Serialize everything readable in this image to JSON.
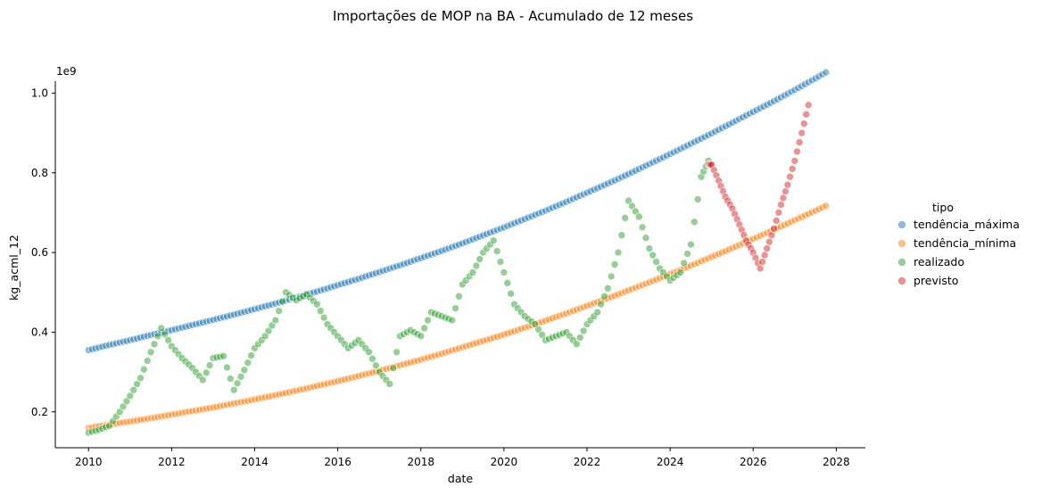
{
  "chart_data": {
    "type": "scatter",
    "title": "Importações de MOP na BA - Acumulado de 12 meses",
    "xlabel": "date",
    "ylabel": "kg_acml_12",
    "y_offset_label": "1e9",
    "xlim": [
      2009.2,
      2028.7
    ],
    "ylim": [
      0.11,
      1.03
    ],
    "x_ticks": [
      2010,
      2012,
      2014,
      2016,
      2018,
      2020,
      2022,
      2024,
      2026,
      2028
    ],
    "x_tick_labels": [
      "2010",
      "2012",
      "2014",
      "2016",
      "2018",
      "2020",
      "2022",
      "2024",
      "2026",
      "2028"
    ],
    "y_ticks": [
      0.2,
      0.4,
      0.6,
      0.8,
      1.0
    ],
    "y_tick_labels": [
      "0.2",
      "0.4",
      "0.6",
      "0.8",
      "1.0"
    ],
    "grid": false,
    "legend_title": "tipo",
    "legend_position": "right",
    "series": [
      {
        "name": "tendência_máxima",
        "color": "#1f77b4",
        "x": [
          2010.0,
          2010.5,
          2011.0,
          2011.5,
          2012.0,
          2012.5,
          2013.0,
          2013.5,
          2014.0,
          2014.5,
          2015.0,
          2015.5,
          2016.0,
          2016.5,
          2017.0,
          2017.5,
          2018.0,
          2018.5,
          2019.0,
          2019.5,
          2020.0,
          2020.5,
          2021.0,
          2021.5,
          2022.0,
          2022.5,
          2023.0,
          2023.5,
          2024.0,
          2024.5,
          2025.0,
          2025.5,
          2026.0,
          2026.5,
          2027.0,
          2027.5,
          2027.83
        ],
        "y": [
          0.355,
          0.368,
          0.38,
          0.393,
          0.405,
          0.418,
          0.431,
          0.444,
          0.458,
          0.472,
          0.487,
          0.502,
          0.518,
          0.534,
          0.551,
          0.568,
          0.586,
          0.604,
          0.623,
          0.643,
          0.663,
          0.684,
          0.705,
          0.727,
          0.75,
          0.773,
          0.797,
          0.822,
          0.847,
          0.873,
          0.899,
          0.926,
          0.953,
          0.98,
          1.008,
          1.037,
          1.057
        ]
      },
      {
        "name": "tendência_mínima",
        "color": "#ff7f0e",
        "x": [
          2010.0,
          2010.5,
          2011.0,
          2011.5,
          2012.0,
          2012.5,
          2013.0,
          2013.5,
          2014.0,
          2014.5,
          2015.0,
          2015.5,
          2016.0,
          2016.5,
          2017.0,
          2017.5,
          2018.0,
          2018.5,
          2019.0,
          2019.5,
          2020.0,
          2020.5,
          2021.0,
          2021.5,
          2022.0,
          2022.5,
          2023.0,
          2023.5,
          2024.0,
          2024.5,
          2025.0,
          2025.5,
          2026.0,
          2026.5,
          2027.0,
          2027.5,
          2027.83
        ],
        "y": [
          0.16,
          0.168,
          0.176,
          0.184,
          0.193,
          0.202,
          0.211,
          0.221,
          0.231,
          0.242,
          0.253,
          0.265,
          0.277,
          0.29,
          0.303,
          0.317,
          0.331,
          0.346,
          0.362,
          0.378,
          0.394,
          0.411,
          0.429,
          0.447,
          0.466,
          0.485,
          0.505,
          0.525,
          0.546,
          0.567,
          0.589,
          0.611,
          0.634,
          0.657,
          0.681,
          0.705,
          0.721
        ]
      },
      {
        "name": "realizado",
        "color": "#2ca02c",
        "x": [
          2010.0,
          2010.25,
          2010.5,
          2010.75,
          2011.0,
          2011.25,
          2011.5,
          2011.75,
          2012.0,
          2012.25,
          2012.5,
          2012.75,
          2013.0,
          2013.25,
          2013.5,
          2013.75,
          2014.0,
          2014.25,
          2014.5,
          2014.75,
          2015.0,
          2015.25,
          2015.5,
          2015.75,
          2016.0,
          2016.25,
          2016.5,
          2016.75,
          2017.0,
          2017.25,
          2017.5,
          2017.75,
          2018.0,
          2018.25,
          2018.5,
          2018.75,
          2019.0,
          2019.25,
          2019.5,
          2019.75,
          2020.0,
          2020.25,
          2020.5,
          2020.75,
          2021.0,
          2021.25,
          2021.5,
          2021.75,
          2022.0,
          2022.25,
          2022.5,
          2022.75,
          2023.0,
          2023.25,
          2023.5,
          2023.75,
          2024.0,
          2024.25,
          2024.5,
          2024.75,
          2024.92
        ],
        "y": [
          0.148,
          0.155,
          0.165,
          0.2,
          0.24,
          0.285,
          0.35,
          0.41,
          0.365,
          0.335,
          0.31,
          0.28,
          0.335,
          0.34,
          0.255,
          0.305,
          0.36,
          0.39,
          0.43,
          0.5,
          0.48,
          0.495,
          0.47,
          0.42,
          0.39,
          0.36,
          0.38,
          0.35,
          0.3,
          0.27,
          0.39,
          0.405,
          0.39,
          0.45,
          0.44,
          0.43,
          0.52,
          0.55,
          0.6,
          0.63,
          0.55,
          0.47,
          0.44,
          0.42,
          0.38,
          0.39,
          0.4,
          0.37,
          0.42,
          0.45,
          0.51,
          0.6,
          0.73,
          0.69,
          0.61,
          0.56,
          0.53,
          0.55,
          0.62,
          0.79,
          0.83
        ]
      },
      {
        "name": "previsto",
        "color": "#d62728",
        "x": [
          2024.92,
          2025.0,
          2025.17,
          2025.33,
          2025.5,
          2025.67,
          2025.83,
          2026.0,
          2026.17,
          2026.33,
          2026.5,
          2026.67,
          2026.83,
          2027.0,
          2027.17,
          2027.33
        ],
        "y": [
          0.822,
          0.82,
          0.78,
          0.74,
          0.71,
          0.67,
          0.63,
          0.6,
          0.56,
          0.61,
          0.66,
          0.72,
          0.77,
          0.83,
          0.9,
          0.97
        ]
      }
    ]
  }
}
